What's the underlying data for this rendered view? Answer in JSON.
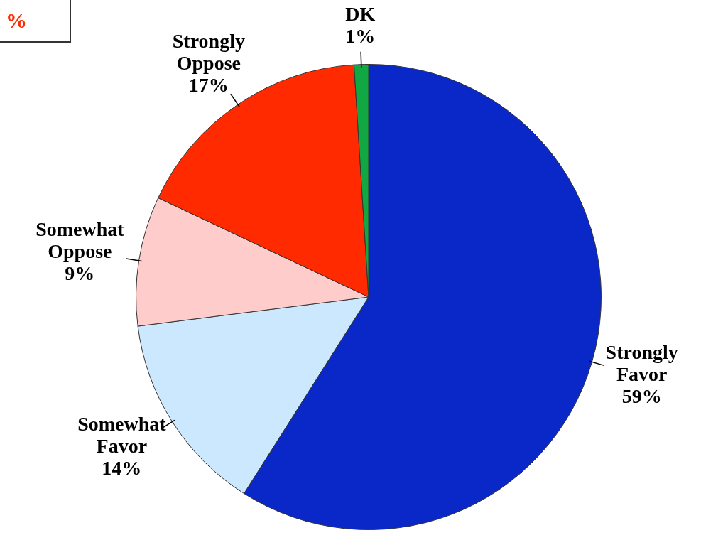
{
  "chart_data": {
    "type": "pie",
    "categories": [
      "Strongly Favor",
      "Somewhat Favor",
      "Somewhat Oppose",
      "Strongly Oppose",
      "DK"
    ],
    "values": [
      59,
      14,
      9,
      17,
      1
    ],
    "colors": [
      "#0a28c8",
      "#cce8ff",
      "#ffcccc",
      "#ff2a00",
      "#11a844"
    ],
    "value_labels": [
      "59%",
      "14%",
      "9%",
      "17%",
      "1%"
    ],
    "annotations": [
      "%"
    ],
    "legend": false
  }
}
